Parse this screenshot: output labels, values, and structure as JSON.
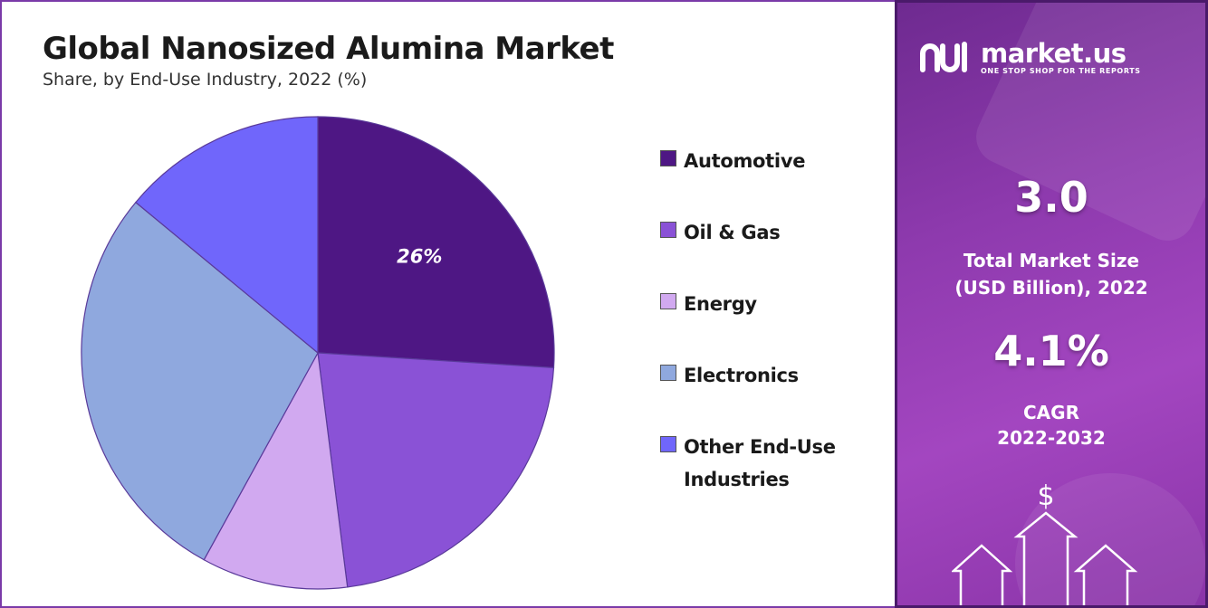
{
  "header": {
    "title": "Global Nanosized Alumina Market",
    "subtitle": "Share, by End-Use Industry, 2022 (%)"
  },
  "chart_data": {
    "type": "pie",
    "title": "Global Nanosized Alumina Market",
    "subtitle": "Share, by End-Use Industry, 2022 (%)",
    "categories": [
      "Automotive",
      "Oil & Gas",
      "Energy",
      "Electronics",
      "Other End-Use Industries"
    ],
    "values": [
      26,
      22,
      10,
      28,
      14
    ],
    "colors": [
      "#4e1784",
      "#8a52d6",
      "#d1a9f0",
      "#8fa8de",
      "#7066fb"
    ],
    "data_labels": [
      {
        "category": "Automotive",
        "text": "26%"
      }
    ],
    "legend_position": "right",
    "start_angle_deg": 0
  },
  "brand": {
    "name": "market.us",
    "tagline": "ONE STOP SHOP FOR THE REPORTS"
  },
  "stats": {
    "market_size_value": "3.0",
    "market_size_label_line1": "Total Market Size",
    "market_size_label_line2": "(USD Billion), 2022",
    "cagr_value": "4.1%",
    "cagr_label_line1": "CAGR",
    "cagr_label_line2": "2022-2032"
  },
  "icons": {
    "currency_symbol": "$"
  }
}
